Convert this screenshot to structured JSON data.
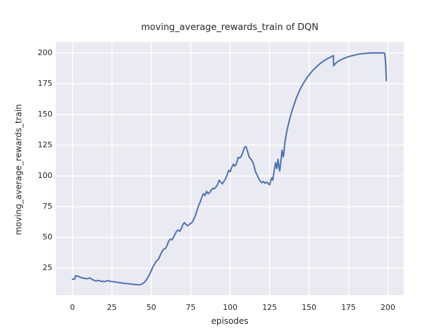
{
  "figure": {
    "background": "#ffffff"
  },
  "chart_data": {
    "type": "line",
    "title": "moving_average_rewards_train of DQN",
    "xlabel": "episodes",
    "ylabel": "moving_average_rewards_train",
    "xticks": [
      0,
      25,
      50,
      75,
      100,
      125,
      150,
      175,
      200
    ],
    "yticks": [
      25,
      50,
      75,
      100,
      125,
      150,
      175,
      200
    ],
    "xlim": [
      -10.5,
      210
    ],
    "ylim": [
      3,
      209
    ],
    "grid": true,
    "legend": false,
    "plot_bg": "#EAEAF2",
    "grid_color": "#FFFFFF",
    "line_color": "#4C72B0",
    "text_color": "#262626",
    "series": [
      {
        "name": "moving_average_rewards_train",
        "points": [
          [
            0,
            16
          ],
          [
            1,
            16.2
          ],
          [
            1.5,
            16.1
          ],
          [
            2,
            18.9
          ],
          [
            3,
            18.6
          ],
          [
            4,
            18.2
          ],
          [
            5,
            17.6
          ],
          [
            6,
            17.2
          ],
          [
            7,
            16.9
          ],
          [
            8,
            16.6
          ],
          [
            9,
            16.4
          ],
          [
            10,
            16.6
          ],
          [
            11,
            17
          ],
          [
            12,
            16.3
          ],
          [
            13,
            15.5
          ],
          [
            14,
            15
          ],
          [
            15,
            14.5
          ],
          [
            16,
            14.8
          ],
          [
            17,
            15.1
          ],
          [
            18,
            14.1
          ],
          [
            19,
            14.5
          ],
          [
            20,
            14
          ],
          [
            21,
            14.2
          ],
          [
            22,
            14.9
          ],
          [
            23,
            14.6
          ],
          [
            24,
            14.3
          ],
          [
            25,
            14.1
          ],
          [
            26,
            14
          ],
          [
            27,
            13.8
          ],
          [
            28,
            13.6
          ],
          [
            29,
            13.4
          ],
          [
            30,
            13.2
          ],
          [
            31,
            13.1
          ],
          [
            32,
            12.9
          ],
          [
            33,
            12.6
          ],
          [
            34,
            12.5
          ],
          [
            35,
            12.4
          ],
          [
            36,
            12.3
          ],
          [
            37,
            12.1
          ],
          [
            38,
            11.9
          ],
          [
            39,
            11.8
          ],
          [
            40,
            11.7
          ],
          [
            41,
            11.6
          ],
          [
            42,
            11.4
          ],
          [
            43,
            11.6
          ],
          [
            44,
            12.1
          ],
          [
            45,
            12.9
          ],
          [
            46,
            14
          ],
          [
            47,
            15.8
          ],
          [
            48,
            17.8
          ],
          [
            49,
            20.2
          ],
          [
            50,
            23
          ],
          [
            51,
            26
          ],
          [
            52,
            28
          ],
          [
            53,
            30.5
          ],
          [
            54,
            31.5
          ],
          [
            55,
            33.5
          ],
          [
            56,
            36.5
          ],
          [
            57,
            39
          ],
          [
            58,
            40.5
          ],
          [
            59,
            41
          ],
          [
            60,
            43.5
          ],
          [
            61,
            47
          ],
          [
            62,
            48.5
          ],
          [
            63,
            48
          ],
          [
            64,
            50
          ],
          [
            65,
            52.5
          ],
          [
            66,
            55
          ],
          [
            67,
            56
          ],
          [
            68,
            55
          ],
          [
            69,
            57
          ],
          [
            70,
            60.5
          ],
          [
            71,
            62
          ],
          [
            72,
            60.5
          ],
          [
            73,
            59.5
          ],
          [
            74,
            60.5
          ],
          [
            75,
            61.5
          ],
          [
            76,
            62.5
          ],
          [
            77,
            65
          ],
          [
            78,
            68
          ],
          [
            79,
            72
          ],
          [
            80,
            76
          ],
          [
            81,
            79
          ],
          [
            82,
            82.5
          ],
          [
            83,
            85.5
          ],
          [
            84,
            84
          ],
          [
            85,
            87.5
          ],
          [
            86,
            85.5
          ],
          [
            87,
            86.5
          ],
          [
            88,
            88.5
          ],
          [
            89,
            90
          ],
          [
            90,
            89.5
          ],
          [
            91,
            91
          ],
          [
            92,
            93
          ],
          [
            93,
            96.5
          ],
          [
            94,
            95
          ],
          [
            95,
            93.5
          ],
          [
            96,
            95.5
          ],
          [
            97,
            97.5
          ],
          [
            98,
            100.5
          ],
          [
            99,
            104.5
          ],
          [
            100,
            103.5
          ],
          [
            101,
            107
          ],
          [
            102,
            109.5
          ],
          [
            103,
            108
          ],
          [
            104,
            110
          ],
          [
            105,
            115
          ],
          [
            106,
            114.5
          ],
          [
            107,
            116
          ],
          [
            108,
            119
          ],
          [
            109,
            123
          ],
          [
            110,
            124
          ],
          [
            111,
            120
          ],
          [
            112,
            115.5
          ],
          [
            113,
            114
          ],
          [
            114,
            112
          ],
          [
            115,
            109
          ],
          [
            116,
            103.5
          ],
          [
            117,
            101
          ],
          [
            118,
            98
          ],
          [
            119,
            96
          ],
          [
            120,
            94.5
          ],
          [
            121,
            95.5
          ],
          [
            122,
            94
          ],
          [
            123,
            95
          ],
          [
            124,
            93.8
          ],
          [
            125,
            92.8
          ],
          [
            126,
            97.5
          ],
          [
            126.5,
            98.4
          ],
          [
            127,
            96.5
          ],
          [
            128,
            105
          ],
          [
            128.8,
            110.7
          ],
          [
            129.3,
            107
          ],
          [
            129.6,
            106
          ],
          [
            130.3,
            113.5
          ],
          [
            131,
            107
          ],
          [
            131.4,
            104
          ],
          [
            132,
            110
          ],
          [
            132.9,
            121
          ],
          [
            133.6,
            115.5
          ],
          [
            134,
            118
          ],
          [
            134.7,
            127.5
          ],
          [
            136,
            137
          ],
          [
            137,
            142.5
          ],
          [
            138,
            147.5
          ],
          [
            139,
            152
          ],
          [
            140,
            156
          ],
          [
            141,
            160
          ],
          [
            142,
            163.5
          ],
          [
            143,
            166.5
          ],
          [
            144,
            169.5
          ],
          [
            145,
            172
          ],
          [
            146,
            174.5
          ],
          [
            147,
            176.5
          ],
          [
            148,
            178.5
          ],
          [
            149,
            180.5
          ],
          [
            150,
            182
          ],
          [
            151,
            183.7
          ],
          [
            152,
            185.2
          ],
          [
            153,
            186.5
          ],
          [
            154,
            187.8
          ],
          [
            155,
            189
          ],
          [
            156,
            190.2
          ],
          [
            157,
            191.3
          ],
          [
            158,
            192.3
          ],
          [
            159,
            193.2
          ],
          [
            160,
            194
          ],
          [
            161,
            194.8
          ],
          [
            162,
            195.5
          ],
          [
            163,
            196.2
          ],
          [
            164,
            196.9
          ],
          [
            165,
            197.5
          ],
          [
            165.4,
            198
          ],
          [
            165.6,
            189.5
          ],
          [
            166,
            190.2
          ],
          [
            167,
            191.7
          ],
          [
            168,
            192.8
          ],
          [
            169,
            193.6
          ],
          [
            170,
            194.3
          ],
          [
            171,
            195
          ],
          [
            172,
            195.5
          ],
          [
            173,
            196
          ],
          [
            174,
            196.5
          ],
          [
            175,
            196.9
          ],
          [
            176,
            197.3
          ],
          [
            177,
            197.7
          ],
          [
            178,
            198
          ],
          [
            179,
            198.3
          ],
          [
            180,
            198.6
          ],
          [
            181,
            198.9
          ],
          [
            182,
            199.1
          ],
          [
            183,
            199.3
          ],
          [
            184,
            199.5
          ],
          [
            185,
            199.6
          ],
          [
            186,
            199.7
          ],
          [
            187,
            199.8
          ],
          [
            188,
            199.9
          ],
          [
            189,
            199.9
          ],
          [
            190,
            200
          ],
          [
            192,
            200
          ],
          [
            194,
            200
          ],
          [
            196,
            200
          ],
          [
            197,
            200
          ],
          [
            198,
            199.8
          ],
          [
            198.6,
            190
          ],
          [
            199,
            177.5
          ]
        ]
      }
    ]
  }
}
